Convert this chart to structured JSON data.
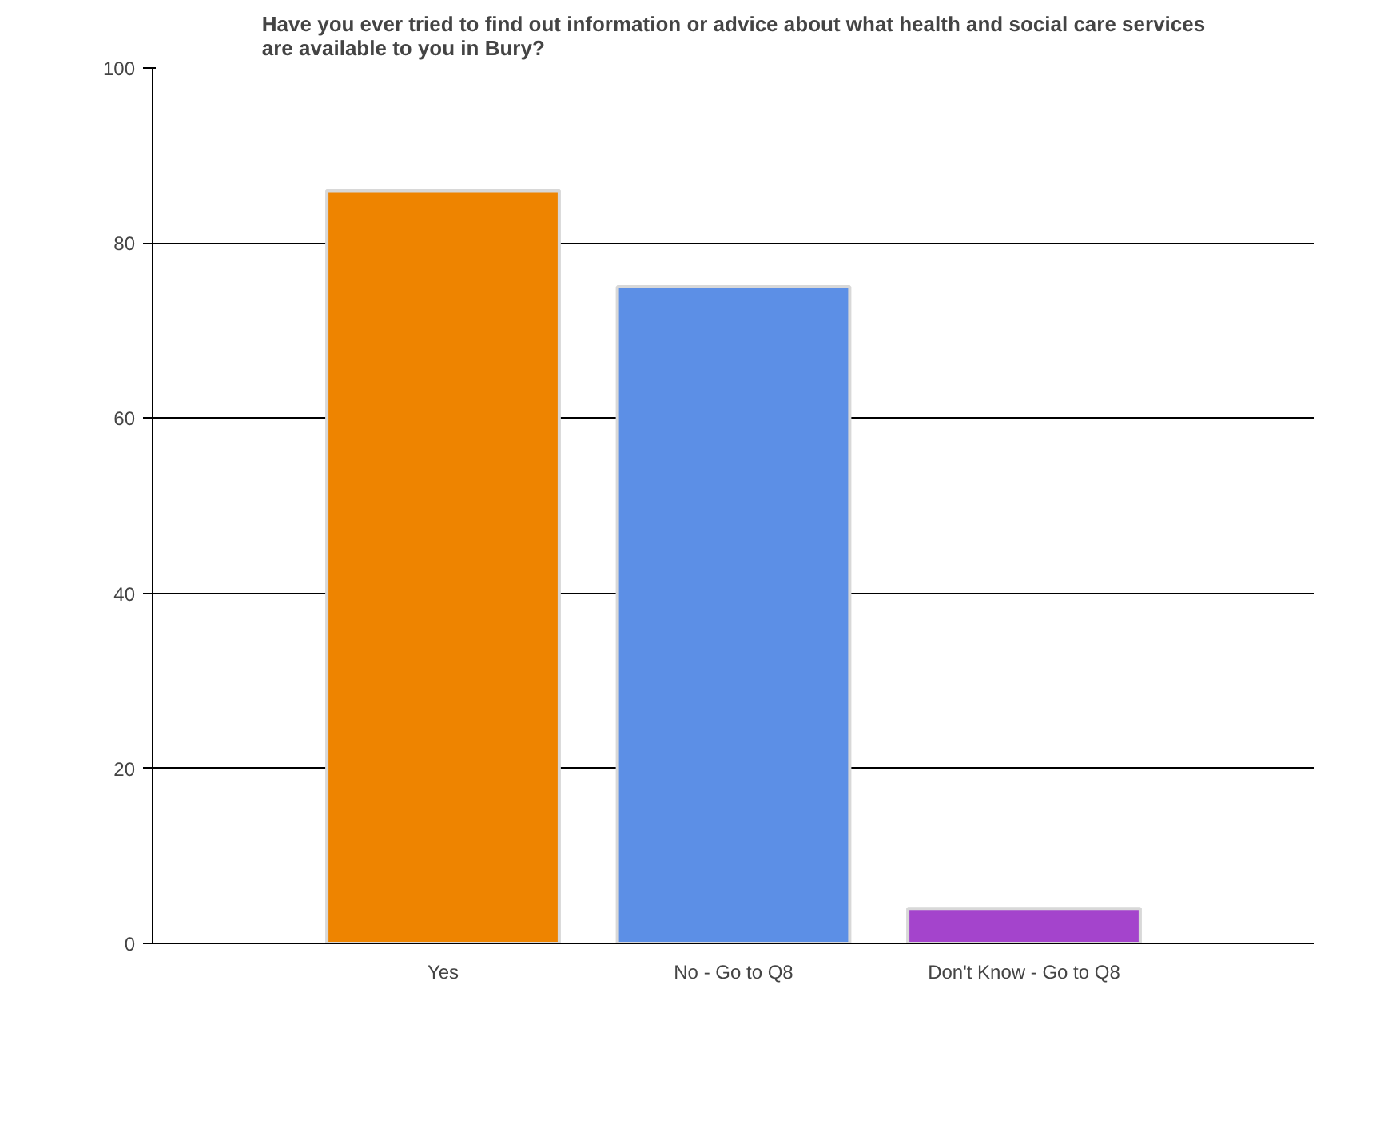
{
  "chart_data": {
    "type": "bar",
    "title": "Have you ever tried to find out information or advice about what health and social care services\nare available to you in Bury?",
    "categories": [
      "Yes",
      "No - Go to Q8",
      "Don't Know - Go to Q8"
    ],
    "values": [
      86,
      75,
      4
    ],
    "colors": [
      "#ee8400",
      "#5c8fe6",
      "#a444cc"
    ],
    "ylim": [
      0,
      100
    ],
    "yticks": [
      0,
      20,
      40,
      60,
      80,
      100
    ],
    "grid": "y"
  }
}
